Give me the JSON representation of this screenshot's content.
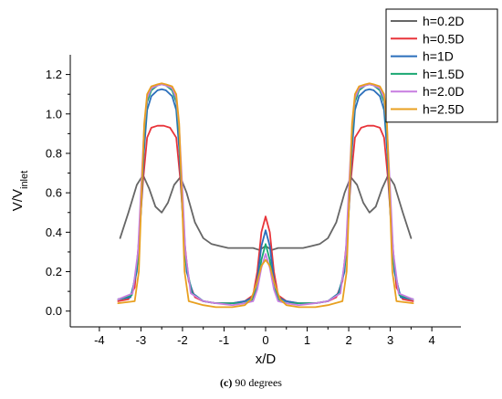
{
  "caption": {
    "label": "(c)",
    "text": " 90 degrees"
  },
  "chart_data": {
    "type": "line",
    "xlabel": "x/D",
    "ylabel": "V/V",
    "ylabel_sub": "inlet",
    "xlim": [
      -4.7,
      4.7
    ],
    "ylim": [
      -0.08,
      1.3
    ],
    "xticks": [
      -4,
      -3,
      -2,
      -1,
      0,
      1,
      2,
      3,
      4
    ],
    "yticks": [
      0.0,
      0.2,
      0.4,
      0.6,
      0.8,
      1.0,
      1.2
    ],
    "legend_position": "top-right",
    "series": [
      {
        "name": "h=0.2D",
        "color": "#666666",
        "x": [
          -3.5,
          -3.3,
          -3.1,
          -2.95,
          -2.8,
          -2.65,
          -2.5,
          -2.35,
          -2.2,
          -2.05,
          -1.9,
          -1.7,
          -1.5,
          -1.3,
          -1.1,
          -0.9,
          -0.7,
          -0.5,
          -0.3,
          -0.15,
          0,
          0.15,
          0.3,
          0.5,
          0.7,
          0.9,
          1.1,
          1.3,
          1.5,
          1.7,
          1.9,
          2.05,
          2.2,
          2.35,
          2.5,
          2.65,
          2.8,
          2.95,
          3.1,
          3.3,
          3.5
        ],
        "y": [
          0.37,
          0.5,
          0.64,
          0.69,
          0.62,
          0.53,
          0.5,
          0.55,
          0.64,
          0.68,
          0.6,
          0.45,
          0.37,
          0.34,
          0.33,
          0.32,
          0.32,
          0.32,
          0.32,
          0.31,
          0.33,
          0.31,
          0.32,
          0.32,
          0.32,
          0.32,
          0.33,
          0.34,
          0.37,
          0.45,
          0.6,
          0.68,
          0.64,
          0.55,
          0.5,
          0.53,
          0.62,
          0.69,
          0.64,
          0.5,
          0.37
        ]
      },
      {
        "name": "h=0.5D",
        "color": "#e8343a",
        "x": [
          -3.55,
          -3.3,
          -3.15,
          -3.05,
          -2.95,
          -2.85,
          -2.75,
          -2.6,
          -2.45,
          -2.3,
          -2.15,
          -2.05,
          -1.95,
          -1.85,
          -1.7,
          -1.5,
          -1.2,
          -0.8,
          -0.5,
          -0.3,
          -0.2,
          -0.1,
          0,
          0.1,
          0.2,
          0.3,
          0.5,
          0.8,
          1.2,
          1.5,
          1.7,
          1.85,
          1.95,
          2.05,
          2.15,
          2.3,
          2.45,
          2.6,
          2.75,
          2.85,
          2.95,
          3.05,
          3.15,
          3.3,
          3.55
        ],
        "y": [
          0.05,
          0.06,
          0.12,
          0.35,
          0.66,
          0.88,
          0.93,
          0.94,
          0.94,
          0.93,
          0.88,
          0.66,
          0.35,
          0.15,
          0.07,
          0.05,
          0.04,
          0.04,
          0.05,
          0.08,
          0.2,
          0.4,
          0.48,
          0.4,
          0.2,
          0.08,
          0.05,
          0.04,
          0.04,
          0.05,
          0.07,
          0.15,
          0.35,
          0.66,
          0.88,
          0.93,
          0.94,
          0.94,
          0.93,
          0.88,
          0.66,
          0.35,
          0.12,
          0.06,
          0.05
        ]
      },
      {
        "name": "h=1D",
        "color": "#2a6ebb",
        "x": [
          -3.55,
          -3.25,
          -3.1,
          -3.0,
          -2.93,
          -2.85,
          -2.75,
          -2.6,
          -2.5,
          -2.4,
          -2.25,
          -2.15,
          -2.07,
          -2.0,
          -1.9,
          -1.75,
          -1.5,
          -1.2,
          -0.8,
          -0.5,
          -0.3,
          -0.2,
          -0.1,
          0,
          0.1,
          0.2,
          0.3,
          0.5,
          0.8,
          1.2,
          1.5,
          1.75,
          1.9,
          2.0,
          2.07,
          2.15,
          2.25,
          2.4,
          2.5,
          2.6,
          2.75,
          2.85,
          2.93,
          3.0,
          3.1,
          3.25,
          3.55
        ],
        "y": [
          0.06,
          0.07,
          0.2,
          0.5,
          0.8,
          1.02,
          1.09,
          1.12,
          1.125,
          1.12,
          1.09,
          1.02,
          0.8,
          0.5,
          0.2,
          0.09,
          0.05,
          0.04,
          0.04,
          0.05,
          0.07,
          0.16,
          0.33,
          0.41,
          0.33,
          0.16,
          0.07,
          0.05,
          0.04,
          0.04,
          0.05,
          0.09,
          0.2,
          0.5,
          0.8,
          1.02,
          1.09,
          1.12,
          1.125,
          1.12,
          1.09,
          1.02,
          0.8,
          0.5,
          0.2,
          0.07,
          0.06
        ]
      },
      {
        "name": "h=1.5D",
        "color": "#1aa772",
        "x": [
          -3.55,
          -3.22,
          -3.08,
          -2.99,
          -2.92,
          -2.85,
          -2.75,
          -2.6,
          -2.5,
          -2.4,
          -2.25,
          -2.15,
          -2.08,
          -2.01,
          -1.92,
          -1.78,
          -1.5,
          -1.2,
          -0.8,
          -0.5,
          -0.3,
          -0.2,
          -0.1,
          0,
          0.1,
          0.2,
          0.3,
          0.5,
          0.8,
          1.2,
          1.5,
          1.78,
          1.92,
          2.01,
          2.08,
          2.15,
          2.25,
          2.4,
          2.5,
          2.6,
          2.75,
          2.85,
          2.92,
          2.99,
          3.08,
          3.22,
          3.55
        ],
        "y": [
          0.06,
          0.08,
          0.25,
          0.6,
          0.9,
          1.06,
          1.12,
          1.145,
          1.15,
          1.145,
          1.12,
          1.06,
          0.9,
          0.6,
          0.25,
          0.09,
          0.05,
          0.04,
          0.04,
          0.04,
          0.06,
          0.12,
          0.26,
          0.34,
          0.26,
          0.12,
          0.06,
          0.04,
          0.04,
          0.04,
          0.05,
          0.09,
          0.25,
          0.6,
          0.9,
          1.06,
          1.12,
          1.145,
          1.15,
          1.145,
          1.12,
          1.06,
          0.9,
          0.6,
          0.25,
          0.08,
          0.06
        ]
      },
      {
        "name": "h=2.0D",
        "color": "#c77de0",
        "x": [
          -3.55,
          -3.2,
          -3.07,
          -2.99,
          -2.92,
          -2.85,
          -2.75,
          -2.6,
          -2.5,
          -2.4,
          -2.25,
          -2.15,
          -2.08,
          -2.01,
          -1.93,
          -1.8,
          -1.5,
          -1.2,
          -0.8,
          -0.5,
          -0.3,
          -0.2,
          -0.1,
          0,
          0.1,
          0.2,
          0.3,
          0.5,
          0.8,
          1.2,
          1.5,
          1.8,
          1.93,
          2.01,
          2.08,
          2.15,
          2.25,
          2.4,
          2.5,
          2.6,
          2.75,
          2.85,
          2.92,
          2.99,
          3.07,
          3.2,
          3.55
        ],
        "y": [
          0.06,
          0.09,
          0.3,
          0.65,
          0.93,
          1.08,
          1.13,
          1.145,
          1.15,
          1.145,
          1.13,
          1.08,
          0.93,
          0.65,
          0.3,
          0.09,
          0.05,
          0.04,
          0.03,
          0.04,
          0.05,
          0.11,
          0.22,
          0.29,
          0.22,
          0.11,
          0.05,
          0.04,
          0.03,
          0.04,
          0.05,
          0.09,
          0.3,
          0.65,
          0.93,
          1.08,
          1.13,
          1.145,
          1.15,
          1.145,
          1.13,
          1.08,
          0.93,
          0.65,
          0.3,
          0.09,
          0.06
        ]
      },
      {
        "name": "h=2.5D",
        "color": "#e8a020",
        "x": [
          -3.55,
          -3.15,
          -3.05,
          -2.98,
          -2.92,
          -2.85,
          -2.75,
          -2.6,
          -2.5,
          -2.4,
          -2.25,
          -2.15,
          -2.08,
          -2.02,
          -1.95,
          -1.85,
          -1.5,
          -1.2,
          -0.8,
          -0.5,
          -0.35,
          -0.2,
          -0.1,
          0,
          0.1,
          0.2,
          0.35,
          0.5,
          0.8,
          1.2,
          1.5,
          1.85,
          1.95,
          2.02,
          2.08,
          2.15,
          2.25,
          2.4,
          2.5,
          2.6,
          2.75,
          2.85,
          2.92,
          2.98,
          3.05,
          3.15,
          3.55
        ],
        "y": [
          0.04,
          0.05,
          0.2,
          0.62,
          0.95,
          1.1,
          1.14,
          1.15,
          1.155,
          1.15,
          1.14,
          1.1,
          0.95,
          0.62,
          0.2,
          0.05,
          0.03,
          0.02,
          0.02,
          0.03,
          0.06,
          0.15,
          0.23,
          0.26,
          0.23,
          0.15,
          0.06,
          0.03,
          0.02,
          0.02,
          0.03,
          0.05,
          0.2,
          0.62,
          0.95,
          1.1,
          1.14,
          1.15,
          1.155,
          1.15,
          1.14,
          1.1,
          0.95,
          0.62,
          0.2,
          0.05,
          0.04
        ]
      }
    ]
  }
}
